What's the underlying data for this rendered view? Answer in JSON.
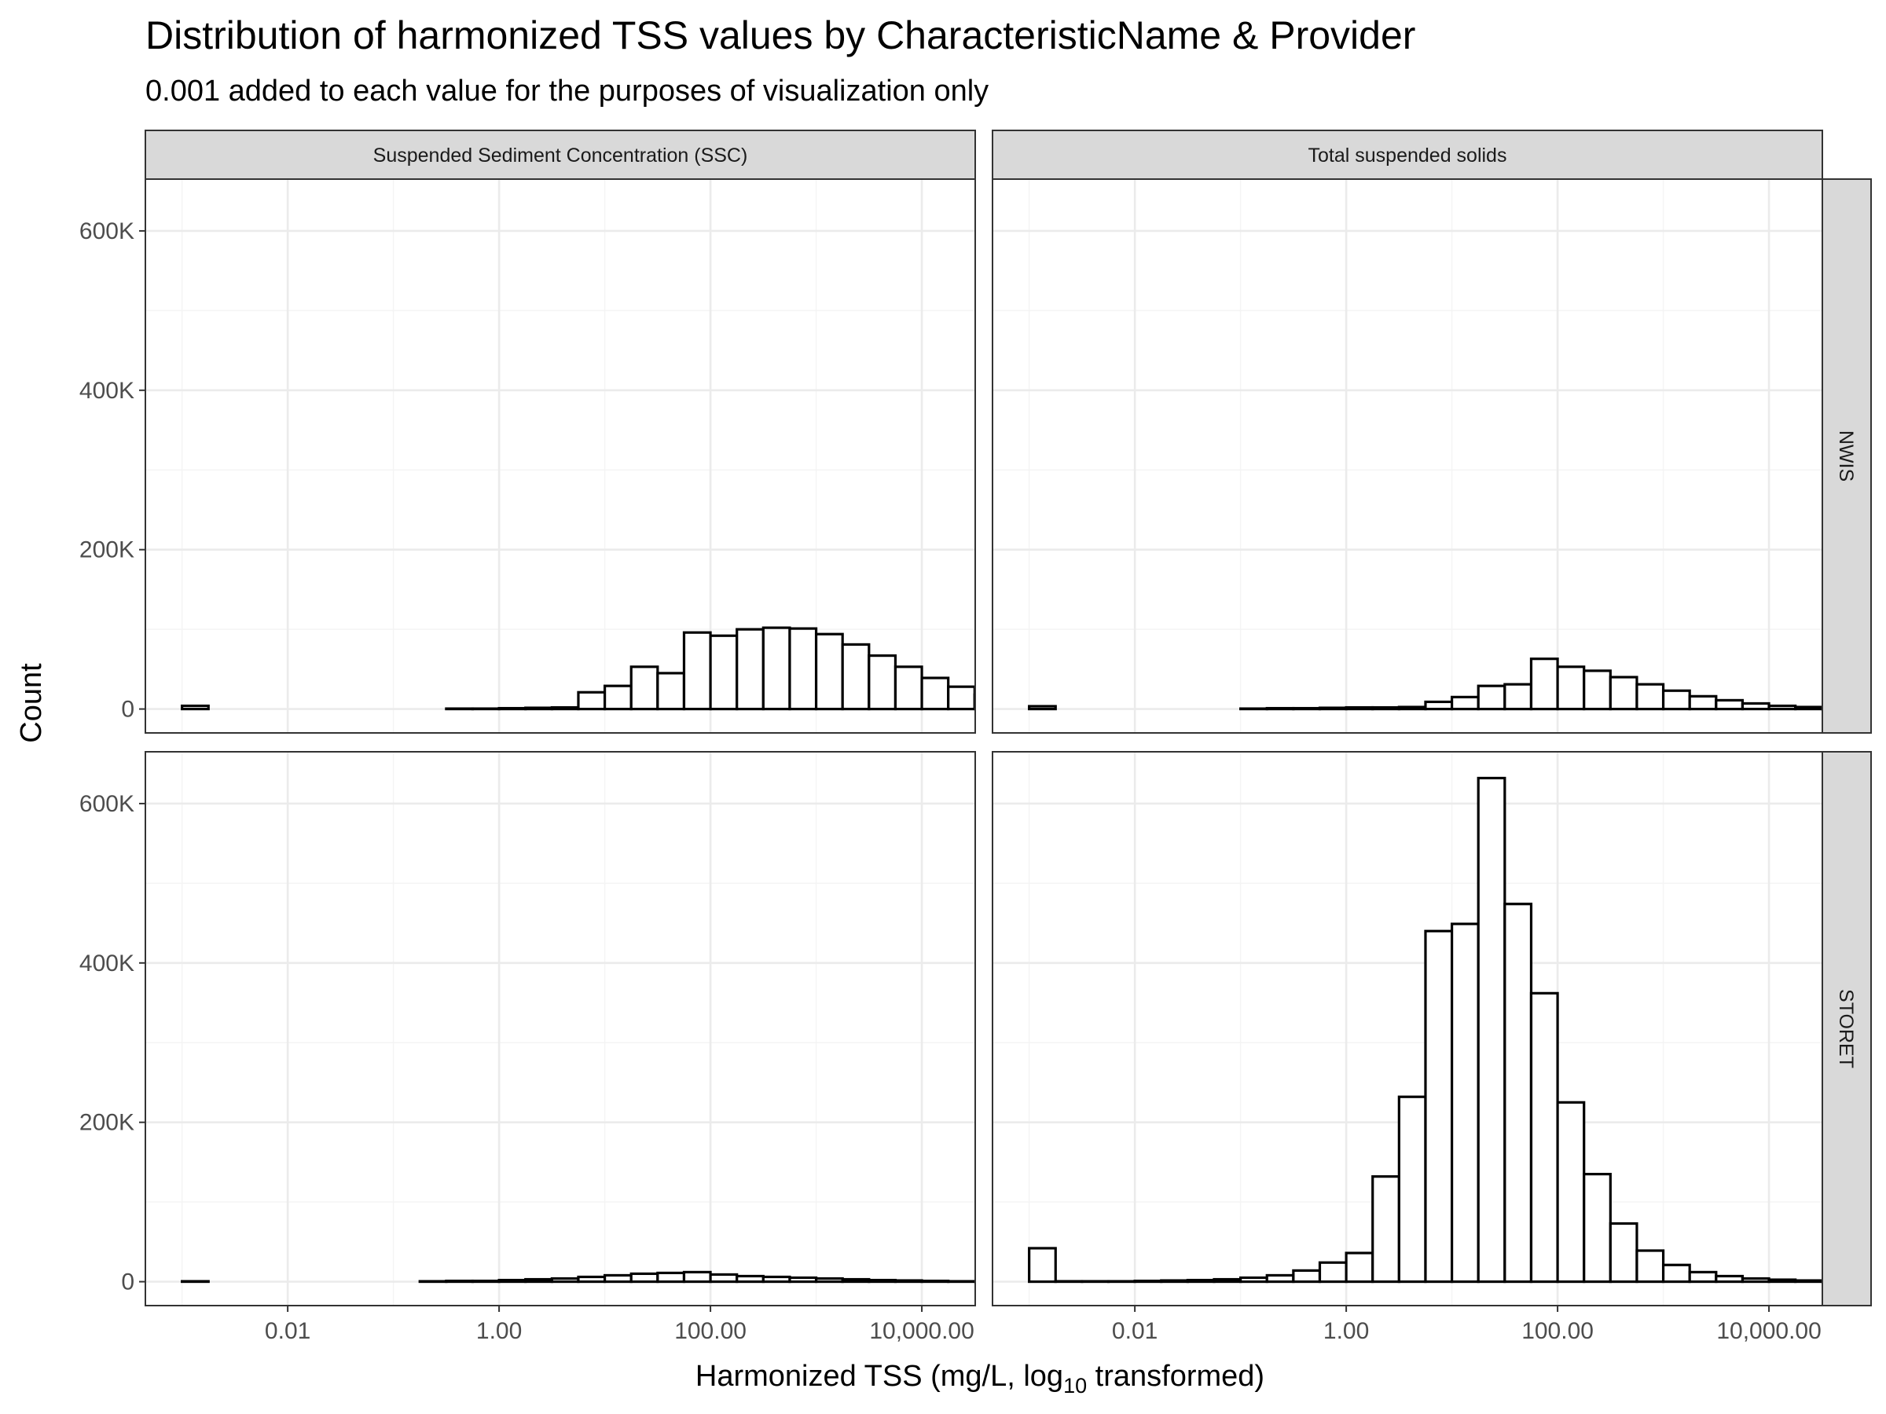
{
  "chart_data": {
    "type": "bar",
    "title": "Distribution of harmonized TSS values by CharacteristicName & Provider",
    "subtitle": "0.001 added to each value for the purposes of visualization only",
    "xlabel_prefix": "Harmonized TSS (mg/L,  log",
    "xlabel_sub": "10",
    "xlabel_suffix": "  transformed)",
    "ylabel": "Count",
    "x_scale": "log10",
    "xlim": [
      0.00045,
      32000
    ],
    "ylim": [
      -30000,
      665000
    ],
    "x_ticks": [
      {
        "value": 0.01,
        "label": "0.01"
      },
      {
        "value": 1,
        "label": "1.00"
      },
      {
        "value": 100,
        "label": "100.00"
      },
      {
        "value": 10000,
        "label": "10,000.00"
      }
    ],
    "y_ticks": [
      {
        "value": 0,
        "label": "0"
      },
      {
        "value": 200000,
        "label": "200K"
      },
      {
        "value": 400000,
        "label": "400K"
      },
      {
        "value": 600000,
        "label": "600K"
      }
    ],
    "grid": true,
    "facet_columns": [
      "Suspended Sediment Concentration (SSC)",
      "Total suspended solids"
    ],
    "facet_rows": [
      "NWIS",
      "STORET"
    ],
    "bin_log10_start": -3.0,
    "bin_log10_width": 0.25,
    "panels": [
      {
        "column": "Suspended Sediment Concentration (SSC)",
        "row": "NWIS",
        "counts": [
          4000,
          0,
          0,
          0,
          0,
          0,
          0,
          0,
          0,
          0,
          500,
          500,
          1000,
          1500,
          2000,
          21000,
          29000,
          53000,
          45000,
          96000,
          92000,
          100000,
          102000,
          101000,
          94000,
          81000,
          67000,
          53000,
          39000,
          28000,
          18000,
          11000,
          1000
        ]
      },
      {
        "column": "Total suspended solids",
        "row": "NWIS",
        "counts": [
          3500,
          0,
          0,
          0,
          0,
          0,
          0,
          0,
          500,
          1000,
          1000,
          1500,
          2000,
          2000,
          2500,
          9000,
          15000,
          29000,
          31000,
          63000,
          53000,
          48000,
          40000,
          31000,
          23000,
          16000,
          11000,
          7000,
          4000,
          2500,
          1500,
          1000,
          500
        ]
      },
      {
        "column": "Suspended Sediment Concentration (SSC)",
        "row": "STORET",
        "counts": [
          500,
          0,
          0,
          0,
          0,
          0,
          0,
          0,
          0,
          500,
          1000,
          1000,
          2000,
          3000,
          4000,
          6000,
          8000,
          10000,
          11000,
          12000,
          9000,
          7000,
          6000,
          5000,
          4000,
          3000,
          2000,
          1500,
          1000,
          500,
          500,
          500,
          500
        ]
      },
      {
        "column": "Total suspended solids",
        "row": "STORET",
        "counts": [
          42000,
          500,
          500,
          500,
          1000,
          1500,
          2000,
          3000,
          5000,
          8000,
          14000,
          24000,
          36000,
          132000,
          232000,
          440000,
          449000,
          632000,
          474000,
          362000,
          225000,
          135000,
          73000,
          39000,
          21000,
          12000,
          7000,
          4000,
          2500,
          1500,
          1000,
          500,
          500
        ]
      }
    ]
  }
}
